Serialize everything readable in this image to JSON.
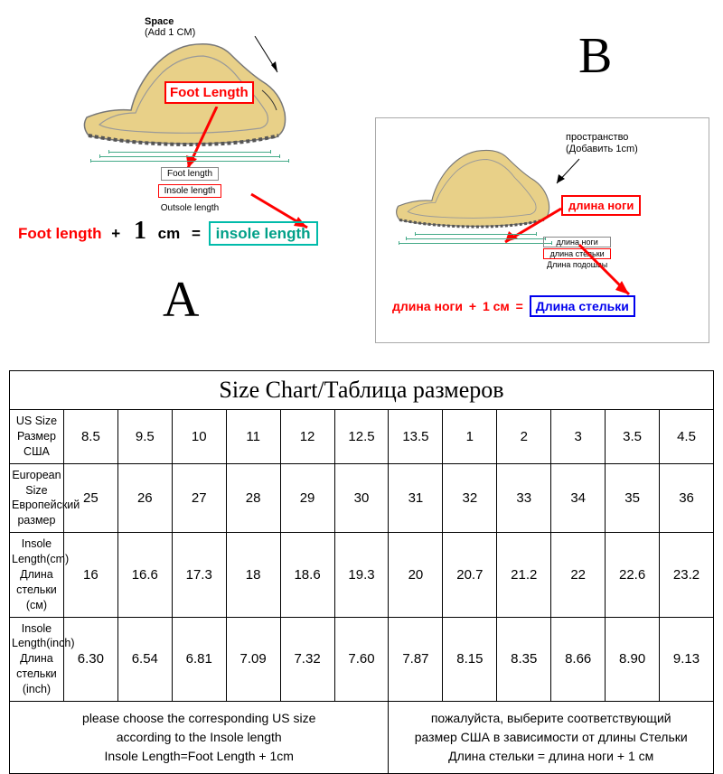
{
  "diagramA": {
    "space_label": "Space",
    "space_sub": "(Add 1 CM)",
    "foot_length_box": "Foot Length",
    "dim_foot": "Foot length",
    "dim_insole": "Insole length",
    "dim_outsole": "Outsole length",
    "formula_foot": "Foot length",
    "formula_plus": "+",
    "formula_one": "1",
    "formula_cm": "cm",
    "formula_eq": "=",
    "formula_insole": "insole length",
    "letter": "A",
    "colors": {
      "callout_border": "#ff0000",
      "callout_text": "#ff0000",
      "insole_border": "#00bbaa",
      "insole_text": "#00a088",
      "shoe_fill": "#e8d088",
      "shoe_stroke": "#888888",
      "dim_color": "#55aa88"
    }
  },
  "diagramB": {
    "letter": "B",
    "space_label": "пространство",
    "space_sub": "(Добавить 1cm)",
    "foot_length_box": "длина ноги",
    "dim_foot": "длина ноги",
    "dim_insole": "длина стельки",
    "dim_outsole": "Длина подошвы",
    "formula_foot": "длина ноги",
    "formula_plus": "+",
    "formula_one_cm": "1 см",
    "formula_eq": "=",
    "formula_insole": "Длина стельки",
    "colors": {
      "callout_border": "#ff0000",
      "callout_text": "#ff0000",
      "insole_border": "#0000ee",
      "insole_text": "#0000ee"
    }
  },
  "sizeChart": {
    "title": "Size Chart/Таблица размеров",
    "rows": [
      {
        "label_en": "US Size",
        "label_ru": "Размер США",
        "values": [
          "8.5",
          "9.5",
          "10",
          "11",
          "12",
          "12.5",
          "13.5",
          "1",
          "2",
          "3",
          "3.5",
          "4.5"
        ]
      },
      {
        "label_en": "European Size",
        "label_ru": "Европейский размер",
        "values": [
          "25",
          "26",
          "27",
          "28",
          "29",
          "30",
          "31",
          "32",
          "33",
          "34",
          "35",
          "36"
        ]
      },
      {
        "label_en": "Insole Length(cm)",
        "label_ru": "Длина стельки (см)",
        "values": [
          "16",
          "16.6",
          "17.3",
          "18",
          "18.6",
          "19.3",
          "20",
          "20.7",
          "21.2",
          "22",
          "22.6",
          "23.2"
        ]
      },
      {
        "label_en": "Insole Length(inch)",
        "label_ru": "Длина стельки",
        "label_extra": "(inch)",
        "values": [
          "6.30",
          "6.54",
          "6.81",
          "7.09",
          "7.32",
          "7.60",
          "7.87",
          "8.15",
          "8.35",
          "8.66",
          "8.90",
          "9.13"
        ]
      }
    ],
    "note_en_line1": "please choose the corresponding US size",
    "note_en_line2": "according to the Insole length",
    "note_en_line3": "Insole Length=Foot Length + 1cm",
    "note_ru_line1": "пожалуйста, выберите соответствующий",
    "note_ru_line2": "размер США в зависимости от длины Стельки",
    "note_ru_line3": "Длина стельки = длина ноги + 1 см",
    "table_style": {
      "border_color": "#000000",
      "title_fontsize": 26,
      "header_fontsize": 12.5,
      "data_fontsize": 15,
      "note_fontsize": 14
    }
  }
}
